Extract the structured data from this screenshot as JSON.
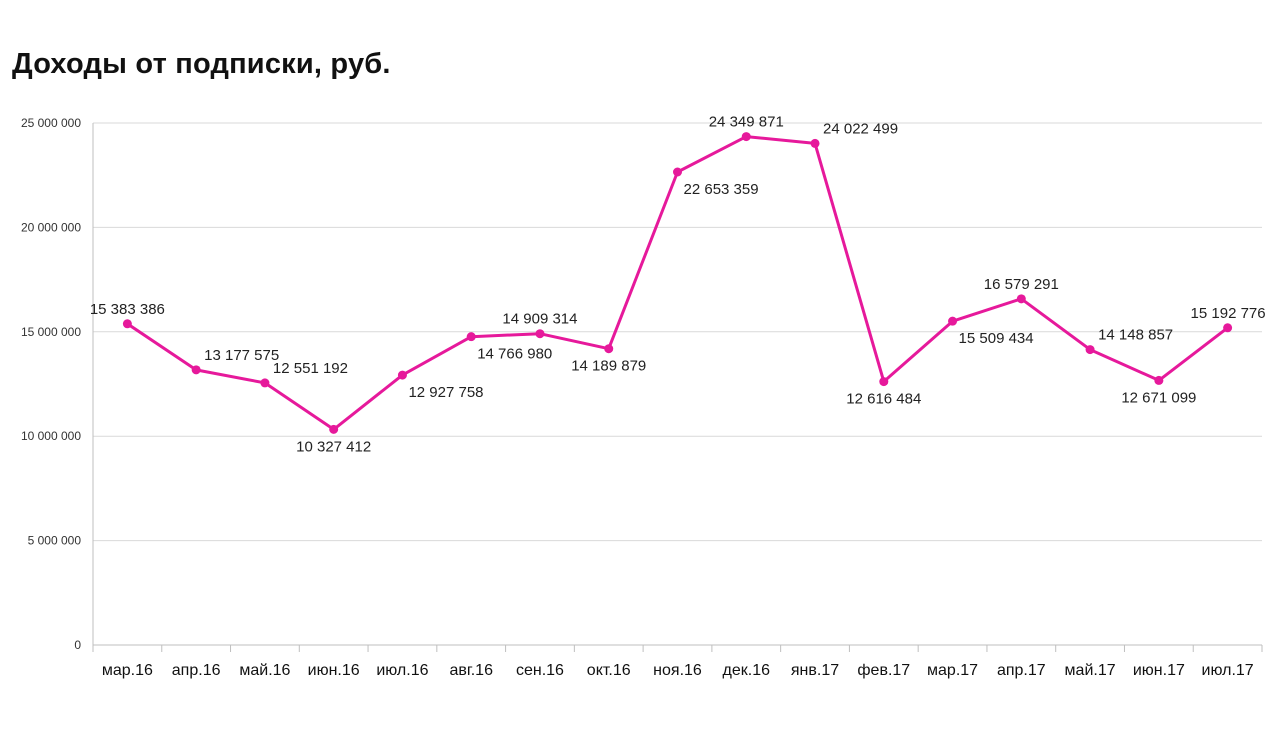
{
  "chart_data": {
    "type": "line",
    "title": "Доходы от подписки, руб.",
    "xlabel": "",
    "ylabel": "",
    "ylim": [
      0,
      25000000
    ],
    "yticks": [
      0,
      5000000,
      10000000,
      15000000,
      20000000,
      25000000
    ],
    "ytick_labels": [
      "0",
      "5 000 000",
      "10 000 000",
      "15 000 000",
      "20 000 000",
      "25 000 000"
    ],
    "grid": true,
    "legend": "none",
    "line_color": "#e6199b",
    "categories": [
      "мар.16",
      "апр.16",
      "май.16",
      "июн.16",
      "июл.16",
      "авг.16",
      "сен.16",
      "окт.16",
      "ноя.16",
      "дек.16",
      "янв.17",
      "фев.17",
      "мар.17",
      "апр.17",
      "май.17",
      "июн.17",
      "июл.17"
    ],
    "values": [
      15383386,
      13177575,
      12551192,
      10327412,
      12927758,
      14766980,
      14909314,
      14189879,
      22653359,
      24349871,
      24022499,
      12616484,
      15509434,
      16579291,
      14148857,
      12671099,
      15192776
    ],
    "data_labels": [
      "15 383 386",
      "13 177 575",
      "12 551 192",
      "10 327 412",
      "12 927 758",
      "14 766 980",
      "14 909 314",
      "14 189 879",
      "22 653 359",
      "24 349 871",
      "24 022 499",
      "12 616 484",
      "15 509 434",
      "16 579 291",
      "14 148 857",
      "12 671 099",
      "15 192 776"
    ]
  }
}
